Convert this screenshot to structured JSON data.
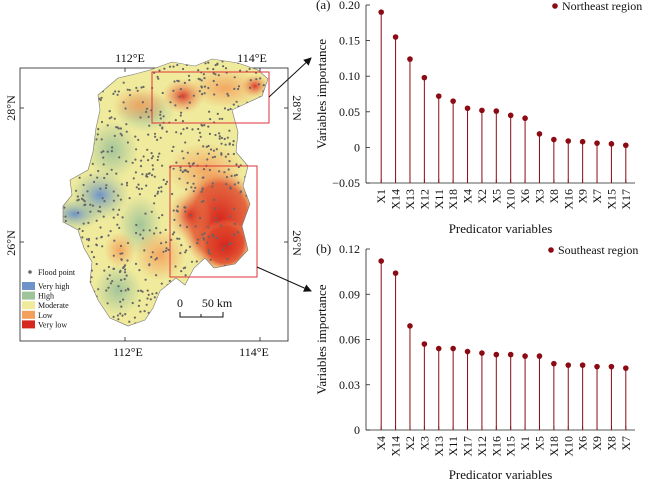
{
  "map": {
    "top_ticks": [
      "112°E",
      "114°E"
    ],
    "bottom_ticks": [
      "112°E",
      "114°E"
    ],
    "left_ticks": [
      "28°N",
      "26°N"
    ],
    "right_ticks": [
      "28°N",
      "26°N"
    ],
    "legend": {
      "point_label": "Flood point",
      "items": [
        {
          "label": "Very high",
          "color": "#6f93c9"
        },
        {
          "label": "High",
          "color": "#9fc39a"
        },
        {
          "label": "Moderate",
          "color": "#f0eb9c"
        },
        {
          "label": "Low",
          "color": "#f3a05c"
        },
        {
          "label": "Very low",
          "color": "#d7261e"
        }
      ]
    },
    "scale_bar": {
      "zero": "0",
      "label": "50 km"
    },
    "colors": {
      "point": "#666666",
      "highlight_box": "#e0333a",
      "arrow": "#111111"
    }
  },
  "chart_data": [
    {
      "type": "scatter",
      "style": "lollipop",
      "panel_label": "(a)",
      "legend": "Northeast region",
      "categories": [
        "X1",
        "X14",
        "X13",
        "X12",
        "X11",
        "X18",
        "X4",
        "X2",
        "X5",
        "X10",
        "X6",
        "X3",
        "X8",
        "X16",
        "X9",
        "X7",
        "X15",
        "X17"
      ],
      "values": [
        0.19,
        0.155,
        0.124,
        0.098,
        0.072,
        0.065,
        0.055,
        0.052,
        0.051,
        0.045,
        0.041,
        0.019,
        0.011,
        0.009,
        0.008,
        0.006,
        0.005,
        0.003
      ],
      "yticks": [
        "0.20",
        "0.15",
        "0.10",
        "0.05",
        "0",
        "−0.05"
      ],
      "ylim": [
        -0.05,
        0.2
      ],
      "xlabel": "Predicator variables",
      "ylabel": "Variables importance",
      "color": "#8b0a14"
    },
    {
      "type": "scatter",
      "style": "lollipop",
      "panel_label": "(b)",
      "legend": "Southeast region",
      "categories": [
        "X4",
        "X14",
        "X2",
        "X3",
        "X13",
        "X11",
        "X17",
        "X12",
        "X16",
        "X15",
        "X1",
        "X5",
        "X18",
        "X10",
        "X6",
        "X9",
        "X8",
        "X7"
      ],
      "values": [
        0.112,
        0.104,
        0.069,
        0.057,
        0.054,
        0.054,
        0.052,
        0.051,
        0.05,
        0.05,
        0.049,
        0.049,
        0.044,
        0.043,
        0.043,
        0.042,
        0.042,
        0.041
      ],
      "yticks": [
        "0.12",
        "0.09",
        "0.06",
        "0.03",
        "0"
      ],
      "ylim": [
        0,
        0.12
      ],
      "xlabel": "Predicator variables",
      "ylabel": "Variables importance",
      "color": "#8b0a14"
    }
  ]
}
